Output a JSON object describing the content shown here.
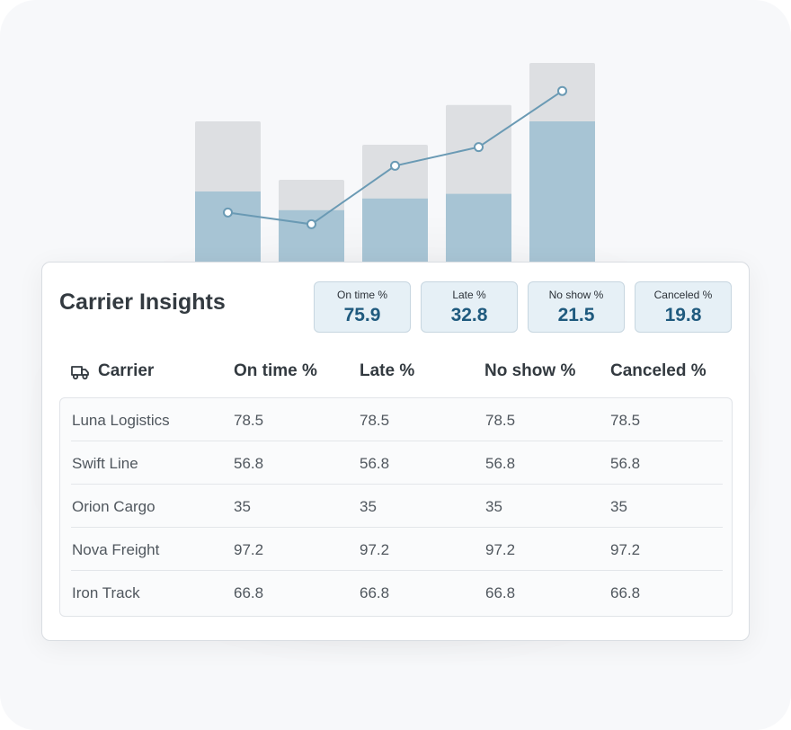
{
  "chart_data": {
    "type": "bar",
    "bars": [
      {
        "total": 60,
        "filled": 30
      },
      {
        "total": 35,
        "filled": 22
      },
      {
        "total": 50,
        "filled": 27
      },
      {
        "total": 67,
        "filled": 29
      },
      {
        "total": 85,
        "filled": 60
      }
    ],
    "line": [
      21,
      16,
      41,
      49,
      73
    ],
    "ylim": [
      0,
      85
    ],
    "grid": false,
    "colors": {
      "bar_bg": "#dddfe2",
      "bar_fill": "#a7c4d4",
      "line": "#6a9ab4"
    }
  },
  "card": {
    "title": "Carrier Insights",
    "stats": [
      {
        "label": "On time %",
        "value": "75.9"
      },
      {
        "label": "Late %",
        "value": "32.8"
      },
      {
        "label": "No show %",
        "value": "21.5"
      },
      {
        "label": "Canceled %",
        "value": "19.8"
      }
    ]
  },
  "table": {
    "icon": "truck-icon",
    "columns": [
      "Carrier",
      "On time %",
      "Late %",
      "No show %",
      "Canceled %"
    ],
    "rows": [
      [
        "Luna Logistics",
        "78.5",
        "78.5",
        "78.5",
        "78.5"
      ],
      [
        "Swift Line",
        "56.8",
        "56.8",
        "56.8",
        "56.8"
      ],
      [
        "Orion Cargo",
        "35",
        "35",
        "35",
        "35"
      ],
      [
        "Nova Freight",
        "97.2",
        "97.2",
        "97.2",
        "97.2"
      ],
      [
        "Iron Track",
        "66.8",
        "66.8",
        "66.8",
        "66.8"
      ]
    ]
  }
}
